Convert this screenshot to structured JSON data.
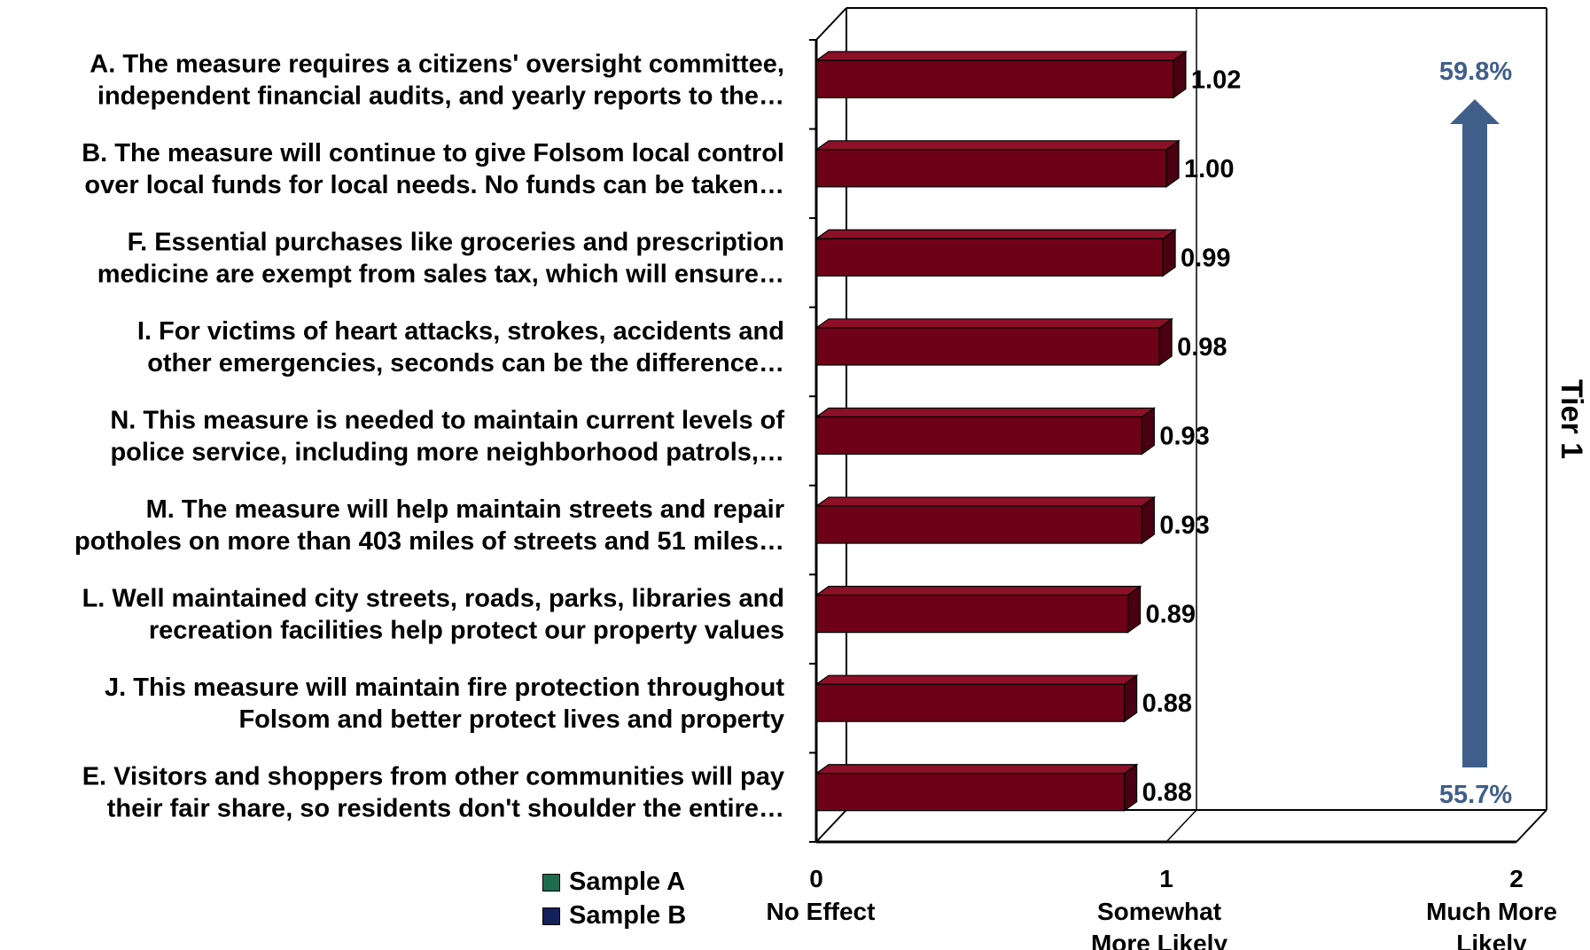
{
  "chart_data": {
    "type": "bar",
    "orientation": "horizontal",
    "categories": [
      [
        "A. The measure requires a citizens' oversight committee,",
        "independent financial audits, and yearly reports to the…"
      ],
      [
        "B. The measure will continue to give Folsom local control",
        "over local funds for local needs. No funds can be taken…"
      ],
      [
        "F. Essential purchases like groceries and prescription",
        "medicine are exempt from sales tax, which will ensure…"
      ],
      [
        "I. For victims of heart attacks, strokes, accidents and",
        "other emergencies, seconds can be the difference…"
      ],
      [
        "N. This measure is needed to maintain current levels of",
        "police service, including more neighborhood patrols,…"
      ],
      [
        "M. The measure will help maintain streets and repair",
        "potholes on more than 403 miles of streets and 51 miles…"
      ],
      [
        "L. Well maintained city streets, roads, parks, libraries and",
        "recreation facilities help protect our property values"
      ],
      [
        "J. This measure will maintain fire protection throughout",
        "Folsom and better protect lives and property"
      ],
      [
        "E. Visitors and shoppers from other communities will pay",
        "their fair share, so residents don't shoulder the entire…"
      ]
    ],
    "values": [
      1.02,
      1.0,
      0.99,
      0.98,
      0.93,
      0.93,
      0.89,
      0.88,
      0.88
    ],
    "value_labels": [
      "1.02",
      "1.00",
      "0.99",
      "0.98",
      "0.93",
      "0.93",
      "0.89",
      "0.88",
      "0.88"
    ],
    "xlim": [
      0,
      2
    ],
    "x_ticks": [
      {
        "value": 0,
        "number": "0",
        "label": [
          "No Effect"
        ]
      },
      {
        "value": 1,
        "number": "1",
        "label": [
          "Somewhat",
          "More  Likely"
        ]
      },
      {
        "value": 2,
        "number": "2",
        "label": [
          "Much More",
          "Likely"
        ]
      }
    ],
    "bar_color": "#6e0018",
    "arrow_color": "#3f5f8a",
    "arrow": {
      "top_label": "59.8%",
      "bottom_label": "55.7%"
    },
    "side_label": "Tier 1",
    "legend": [
      {
        "name": "Sample A",
        "color": "#1f6b4f"
      },
      {
        "name": "Sample B",
        "color": "#14205a"
      }
    ],
    "legend_placement": "bottom-left",
    "grid": false
  }
}
